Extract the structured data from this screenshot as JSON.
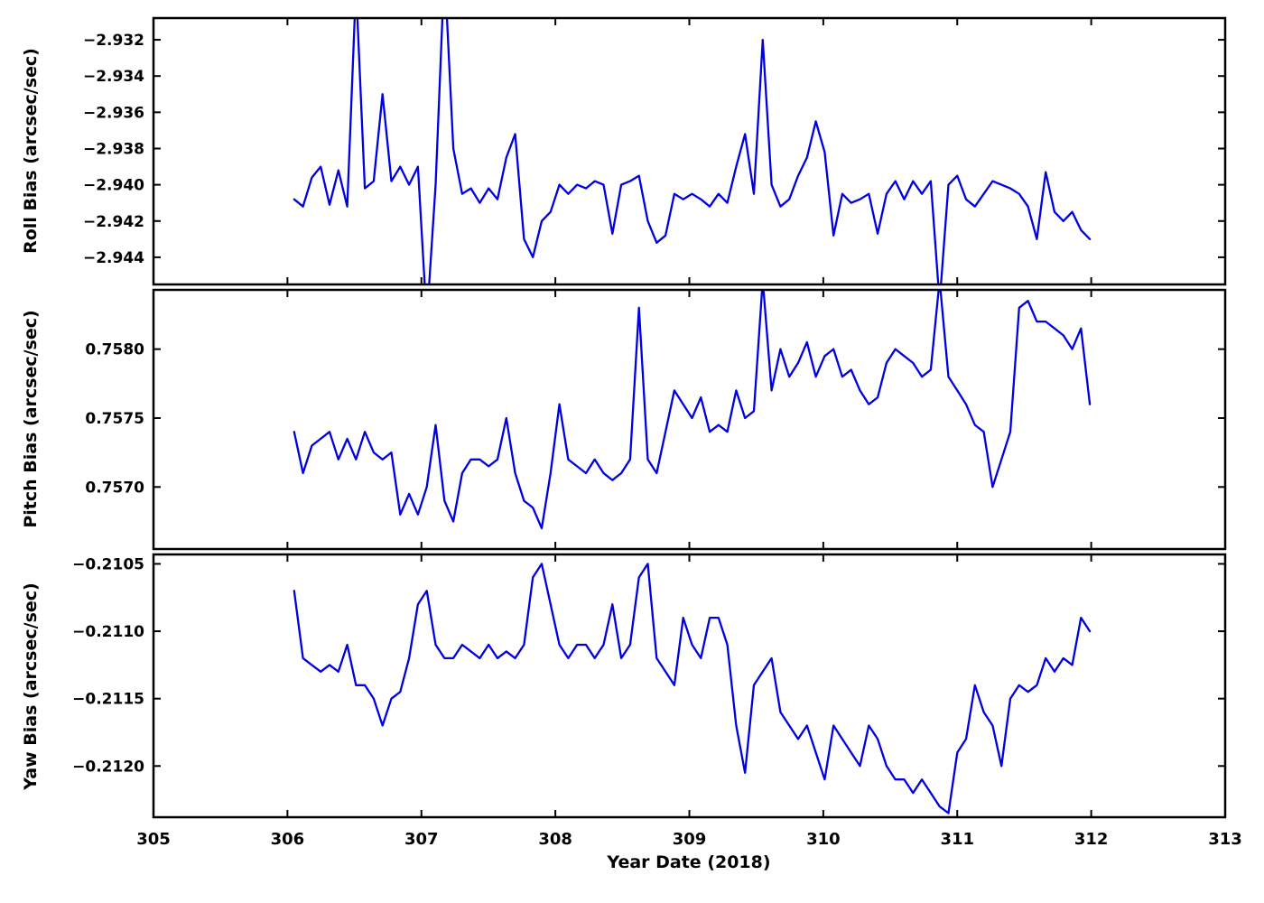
{
  "figure": {
    "background": "#ffffff",
    "line_color": "#0000e0",
    "xlabel": "Year Date (2018)",
    "xlim": [
      305,
      313
    ],
    "xticks": [
      {
        "value": 305,
        "label": "305"
      },
      {
        "value": 306,
        "label": "306"
      },
      {
        "value": 307,
        "label": "307"
      },
      {
        "value": 308,
        "label": "308"
      },
      {
        "value": 309,
        "label": "309"
      },
      {
        "value": 310,
        "label": "310"
      },
      {
        "value": 311,
        "label": "311"
      },
      {
        "value": 312,
        "label": "312"
      },
      {
        "value": 313,
        "label": "313"
      }
    ],
    "x": [
      306.05,
      306.116,
      306.182,
      306.248,
      306.314,
      306.38,
      306.446,
      306.512,
      306.578,
      306.644,
      306.71,
      306.776,
      306.842,
      306.908,
      306.974,
      307.04,
      307.106,
      307.172,
      307.238,
      307.304,
      307.37,
      307.436,
      307.502,
      307.568,
      307.634,
      307.7,
      307.766,
      307.832,
      307.898,
      307.964,
      308.03,
      308.096,
      308.162,
      308.228,
      308.294,
      308.36,
      308.426,
      308.492,
      308.558,
      308.624,
      308.69,
      308.756,
      308.822,
      308.888,
      308.954,
      309.02,
      309.086,
      309.152,
      309.218,
      309.284,
      309.35,
      309.416,
      309.482,
      309.548,
      309.614,
      309.68,
      309.746,
      309.812,
      309.878,
      309.944,
      310.01,
      310.076,
      310.142,
      310.208,
      310.274,
      310.34,
      310.406,
      310.472,
      310.538,
      310.604,
      310.67,
      310.736,
      310.802,
      310.868,
      310.934,
      311.0,
      311.066,
      311.132,
      311.198,
      311.264,
      311.33,
      311.396,
      311.462,
      311.528,
      311.594,
      311.66,
      311.726,
      311.792,
      311.858,
      311.924,
      311.99
    ]
  },
  "chart_data": [
    {
      "type": "line",
      "name": "roll-bias",
      "ylabel": "Roll Bias (arcsec/sec)",
      "ylim": [
        -2.9455,
        -2.9308
      ],
      "yticks": [
        {
          "value": -2.932,
          "label": "−2.932"
        },
        {
          "value": -2.934,
          "label": "−2.934"
        },
        {
          "value": -2.936,
          "label": "−2.936"
        },
        {
          "value": -2.938,
          "label": "−2.938"
        },
        {
          "value": -2.94,
          "label": "−2.940"
        },
        {
          "value": -2.942,
          "label": "−2.942"
        },
        {
          "value": -2.944,
          "label": "−2.944"
        }
      ],
      "y": [
        -2.9408,
        -2.9412,
        -2.9396,
        -2.939,
        -2.9411,
        -2.9392,
        -2.9412,
        -2.929,
        -2.9402,
        -2.9398,
        -2.935,
        -2.9398,
        -2.939,
        -2.94,
        -2.939,
        -2.9475,
        -2.94,
        -2.928,
        -2.938,
        -2.9405,
        -2.9402,
        -2.941,
        -2.9402,
        -2.9408,
        -2.9385,
        -2.9372,
        -2.943,
        -2.944,
        -2.942,
        -2.9415,
        -2.94,
        -2.9405,
        -2.94,
        -2.9402,
        -2.9398,
        -2.94,
        -2.9427,
        -2.94,
        -2.9398,
        -2.9395,
        -2.942,
        -2.9432,
        -2.9428,
        -2.9405,
        -2.9408,
        -2.9405,
        -2.9408,
        -2.9412,
        -2.9405,
        -2.941,
        -2.939,
        -2.9372,
        -2.9405,
        -2.932,
        -2.94,
        -2.9412,
        -2.9408,
        -2.9395,
        -2.9385,
        -2.9365,
        -2.9382,
        -2.9428,
        -2.9405,
        -2.941,
        -2.9408,
        -2.9405,
        -2.9427,
        -2.9405,
        -2.9398,
        -2.9408,
        -2.9398,
        -2.9405,
        -2.9398,
        -2.9465,
        -2.94,
        -2.9395,
        -2.9408,
        -2.9412,
        -2.9405,
        -2.9398,
        -2.94,
        -2.9402,
        -2.9405,
        -2.9412,
        -2.943,
        -2.9393,
        -2.9415,
        -2.942,
        -2.9415,
        -2.9425,
        -2.943
      ]
    },
    {
      "type": "line",
      "name": "pitch-bias",
      "ylabel": "Pitch Bias (arcsec/sec)",
      "ylim": [
        0.75655,
        0.75843
      ],
      "yticks": [
        {
          "value": 0.758,
          "label": "0.7580"
        },
        {
          "value": 0.7575,
          "label": "0.7575"
        },
        {
          "value": 0.757,
          "label": "0.7570"
        }
      ],
      "y": [
        0.7574,
        0.7571,
        0.7573,
        0.75735,
        0.7574,
        0.7572,
        0.75735,
        0.7572,
        0.7574,
        0.75725,
        0.7572,
        0.75725,
        0.7568,
        0.75695,
        0.7568,
        0.757,
        0.75745,
        0.7569,
        0.75675,
        0.7571,
        0.7572,
        0.7572,
        0.75715,
        0.7572,
        0.7575,
        0.7571,
        0.7569,
        0.75685,
        0.7567,
        0.7571,
        0.7576,
        0.7572,
        0.75715,
        0.7571,
        0.7572,
        0.7571,
        0.75705,
        0.7571,
        0.7572,
        0.7583,
        0.7572,
        0.7571,
        0.7574,
        0.7577,
        0.7576,
        0.7575,
        0.75765,
        0.7574,
        0.75745,
        0.7574,
        0.7577,
        0.7575,
        0.75755,
        0.7585,
        0.7577,
        0.758,
        0.7578,
        0.7579,
        0.75805,
        0.7578,
        0.75795,
        0.758,
        0.7578,
        0.75785,
        0.7577,
        0.7576,
        0.75765,
        0.7579,
        0.758,
        0.75795,
        0.7579,
        0.7578,
        0.75785,
        0.7585,
        0.7578,
        0.7577,
        0.7576,
        0.75745,
        0.7574,
        0.757,
        0.7572,
        0.7574,
        0.7583,
        0.75835,
        0.7582,
        0.7582,
        0.75815,
        0.7581,
        0.758,
        0.75815,
        0.7576
      ]
    },
    {
      "type": "line",
      "name": "yaw-bias",
      "ylabel": "Yaw Bias (arcsec/sec)",
      "ylim": [
        -0.21238,
        -0.21043
      ],
      "yticks": [
        {
          "value": -0.2105,
          "label": "−0.2105"
        },
        {
          "value": -0.211,
          "label": "−0.2110"
        },
        {
          "value": -0.2115,
          "label": "−0.2115"
        },
        {
          "value": -0.212,
          "label": "−0.2120"
        }
      ],
      "y": [
        -0.2107,
        -0.2112,
        -0.21125,
        -0.2113,
        -0.21125,
        -0.2113,
        -0.2111,
        -0.2114,
        -0.2114,
        -0.2115,
        -0.2117,
        -0.2115,
        -0.21145,
        -0.2112,
        -0.2108,
        -0.2107,
        -0.2111,
        -0.2112,
        -0.2112,
        -0.2111,
        -0.21115,
        -0.2112,
        -0.2111,
        -0.2112,
        -0.21115,
        -0.2112,
        -0.2111,
        -0.2106,
        -0.2105,
        -0.2108,
        -0.2111,
        -0.2112,
        -0.2111,
        -0.2111,
        -0.2112,
        -0.2111,
        -0.2108,
        -0.2112,
        -0.2111,
        -0.2106,
        -0.2105,
        -0.2112,
        -0.2113,
        -0.2114,
        -0.2109,
        -0.2111,
        -0.2112,
        -0.2109,
        -0.2109,
        -0.2111,
        -0.2117,
        -0.21205,
        -0.2114,
        -0.2113,
        -0.2112,
        -0.2116,
        -0.2117,
        -0.2118,
        -0.2117,
        -0.2119,
        -0.2121,
        -0.2117,
        -0.2118,
        -0.2119,
        -0.212,
        -0.2117,
        -0.2118,
        -0.212,
        -0.2121,
        -0.2121,
        -0.2122,
        -0.2121,
        -0.2122,
        -0.2123,
        -0.21235,
        -0.2119,
        -0.2118,
        -0.2114,
        -0.2116,
        -0.2117,
        -0.212,
        -0.2115,
        -0.2114,
        -0.21145,
        -0.2114,
        -0.2112,
        -0.2113,
        -0.2112,
        -0.21125,
        -0.2109,
        -0.211
      ]
    }
  ]
}
